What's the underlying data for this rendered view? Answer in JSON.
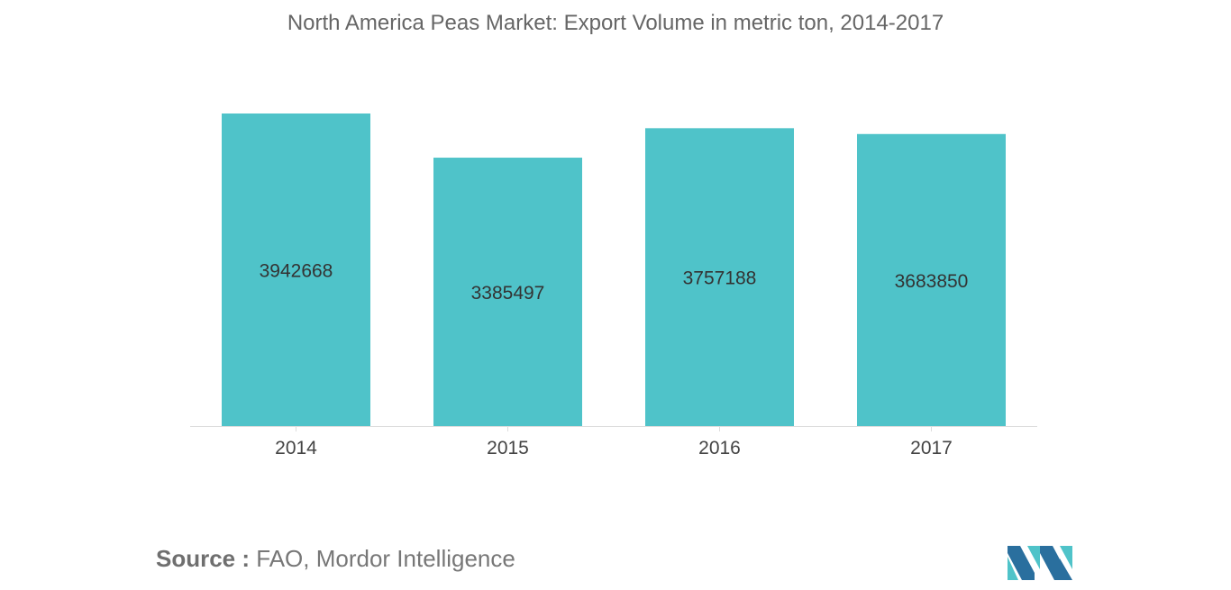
{
  "title": "North America Peas Market: Export Volume in metric ton, 2014-2017",
  "source": {
    "label": "Source :",
    "text": "FAO, Mordor Intelligence"
  },
  "logo": {
    "name": "mordor-intelligence-logo"
  },
  "colors": {
    "bar": "#4fc3c9",
    "text": "#333333",
    "axis": "#dddddd"
  },
  "chart_data": {
    "type": "bar",
    "title": "North America Peas Market: Export Volume in metric ton, 2014-2017",
    "xlabel": "",
    "ylabel": "",
    "categories": [
      "2014",
      "2015",
      "2016",
      "2017"
    ],
    "values": [
      3942668,
      3385497,
      3757188,
      3683850
    ],
    "data_labels": [
      "3942668",
      "3385497",
      "3757188",
      "3683850"
    ],
    "ylim": [
      0,
      4000000
    ],
    "grid": false,
    "legend": "none"
  }
}
